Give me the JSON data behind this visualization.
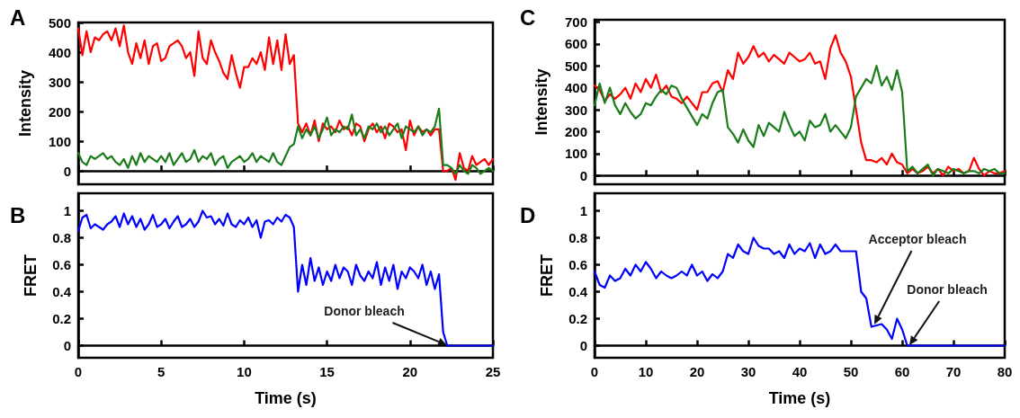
{
  "chart_data": [
    {
      "type": "line",
      "title": "A",
      "ylabel": "Intensity",
      "x": [
        0,
        0.25,
        0.5,
        0.75,
        1,
        1.25,
        1.5,
        1.75,
        2,
        2.25,
        2.5,
        2.75,
        3,
        3.25,
        3.5,
        3.75,
        4,
        4.25,
        4.5,
        4.75,
        5,
        5.25,
        5.5,
        5.75,
        6,
        6.25,
        6.5,
        6.75,
        7,
        7.25,
        7.5,
        7.75,
        8,
        8.25,
        8.5,
        8.75,
        9,
        9.25,
        9.5,
        9.75,
        10,
        10.25,
        10.5,
        10.75,
        11,
        11.25,
        11.5,
        11.75,
        12,
        12.25,
        12.5,
        12.75,
        13,
        13.25,
        13.5,
        13.75,
        14,
        14.25,
        14.5,
        14.75,
        15,
        15.25,
        15.5,
        15.75,
        16,
        16.25,
        16.5,
        16.75,
        17,
        17.25,
        17.5,
        17.75,
        18,
        18.25,
        18.5,
        18.75,
        19,
        19.25,
        19.5,
        19.75,
        20,
        20.25,
        20.5,
        20.75,
        21,
        21.25,
        21.5,
        21.75,
        22,
        22.25,
        22.5,
        22.75,
        23,
        23.25,
        23.5,
        23.75,
        24,
        24.25,
        24.5,
        24.75,
        25
      ],
      "series": [
        {
          "color": "#ff0000",
          "values": [
            480,
            390,
            470,
            400,
            450,
            440,
            460,
            470,
            440,
            480,
            420,
            490,
            400,
            360,
            430,
            380,
            440,
            360,
            420,
            430,
            370,
            380,
            420,
            430,
            440,
            420,
            380,
            400,
            320,
            470,
            380,
            360,
            440,
            400,
            370,
            330,
            310,
            390,
            330,
            280,
            350,
            350,
            380,
            360,
            400,
            340,
            450,
            360,
            440,
            340,
            460,
            360,
            390,
            160,
            130,
            160,
            120,
            170,
            100,
            160,
            140,
            150,
            130,
            170,
            140,
            150,
            120,
            160,
            150,
            100,
            140,
            160,
            130,
            150,
            110,
            160,
            150,
            130,
            140,
            70,
            170,
            120,
            150,
            130,
            140,
            120,
            140,
            140,
            0,
            0,
            10,
            -30,
            60,
            10,
            0,
            50,
            20,
            30,
            40,
            20,
            40
          ]
        },
        {
          "color": "#1a7d1a",
          "values": [
            60,
            30,
            20,
            50,
            40,
            50,
            60,
            40,
            50,
            30,
            20,
            40,
            10,
            50,
            20,
            60,
            30,
            50,
            40,
            30,
            50,
            30,
            60,
            20,
            40,
            60,
            30,
            40,
            70,
            30,
            50,
            40,
            60,
            20,
            40,
            50,
            10,
            30,
            40,
            50,
            30,
            40,
            60,
            30,
            50,
            40,
            30,
            60,
            30,
            20,
            50,
            80,
            90,
            150,
            110,
            140,
            120,
            150,
            110,
            140,
            180,
            120,
            140,
            130,
            150,
            140,
            190,
            120,
            140,
            110,
            150,
            140,
            160,
            130,
            150,
            120,
            140,
            160,
            110,
            150,
            140,
            130,
            150,
            120,
            140,
            130,
            150,
            210,
            20,
            20,
            10,
            -10,
            20,
            0,
            -10,
            20,
            10,
            -10,
            0,
            10,
            0
          ]
        }
      ],
      "xlim": [
        0,
        25
      ],
      "xticks": [
        0,
        5,
        10,
        15,
        20,
        25
      ],
      "ylim": [
        -45,
        500
      ],
      "yticks": [
        0,
        100,
        200,
        300,
        400,
        500
      ],
      "tick_labels": "y"
    },
    {
      "type": "line",
      "title": "B",
      "xlabel": "Time (s)",
      "ylabel": "FRET",
      "x": [
        0,
        0.25,
        0.5,
        0.75,
        1,
        1.25,
        1.5,
        1.75,
        2,
        2.25,
        2.5,
        2.75,
        3,
        3.25,
        3.5,
        3.75,
        4,
        4.25,
        4.5,
        4.75,
        5,
        5.25,
        5.5,
        5.75,
        6,
        6.25,
        6.5,
        6.75,
        7,
        7.25,
        7.5,
        7.75,
        8,
        8.25,
        8.5,
        8.75,
        9,
        9.25,
        9.5,
        9.75,
        10,
        10.25,
        10.5,
        10.75,
        11,
        11.25,
        11.5,
        11.75,
        12,
        12.25,
        12.5,
        12.75,
        13,
        13.25,
        13.5,
        13.75,
        14,
        14.25,
        14.5,
        14.75,
        15,
        15.25,
        15.5,
        15.75,
        16,
        16.25,
        16.5,
        16.75,
        17,
        17.25,
        17.5,
        17.75,
        18,
        18.25,
        18.5,
        18.75,
        19,
        19.25,
        19.5,
        19.75,
        20,
        20.25,
        20.5,
        20.75,
        21,
        21.25,
        21.5,
        21.75,
        22,
        22.25,
        22.5,
        22.75,
        23,
        23.25,
        23.5,
        23.75,
        24,
        24.25,
        24.5,
        24.75,
        25
      ],
      "series": [
        {
          "color": "#0000ff",
          "values": [
            0.85,
            0.95,
            0.97,
            0.87,
            0.9,
            0.88,
            0.86,
            0.9,
            0.92,
            0.96,
            0.88,
            0.98,
            0.9,
            0.96,
            0.88,
            0.94,
            0.86,
            0.9,
            0.97,
            0.88,
            0.9,
            0.94,
            0.87,
            0.92,
            0.96,
            0.88,
            0.9,
            0.94,
            0.88,
            0.92,
            1.0,
            0.95,
            0.96,
            0.9,
            0.94,
            0.89,
            0.98,
            0.9,
            0.88,
            0.93,
            0.9,
            0.95,
            0.88,
            0.93,
            0.8,
            0.92,
            0.93,
            0.9,
            0.95,
            0.92,
            0.97,
            0.95,
            0.88,
            0.4,
            0.6,
            0.45,
            0.65,
            0.48,
            0.58,
            0.45,
            0.55,
            0.48,
            0.6,
            0.5,
            0.58,
            0.55,
            0.45,
            0.6,
            0.52,
            0.48,
            0.55,
            0.5,
            0.62,
            0.45,
            0.58,
            0.48,
            0.6,
            0.42,
            0.55,
            0.5,
            0.58,
            0.55,
            0.5,
            0.6,
            0.45,
            0.55,
            0.42,
            0.53,
            0.1,
            0,
            0,
            0,
            0,
            0,
            0,
            0,
            0,
            0,
            0,
            0,
            0
          ]
        }
      ],
      "xlim": [
        0,
        25
      ],
      "xticks": [
        0,
        5,
        10,
        15,
        20,
        25
      ],
      "ylim": [
        -0.09,
        1.13
      ],
      "yticks": [
        0,
        0.2,
        0.4,
        0.6,
        0.8,
        1
      ],
      "annotations": [
        "Donor bleach"
      ]
    },
    {
      "type": "line",
      "title": "C",
      "ylabel": "Intensity",
      "x": [
        0,
        1,
        2,
        3,
        4,
        5,
        6,
        7,
        8,
        9,
        10,
        11,
        12,
        13,
        14,
        15,
        16,
        17,
        18,
        19,
        20,
        21,
        22,
        23,
        24,
        25,
        26,
        27,
        28,
        29,
        30,
        31,
        32,
        33,
        34,
        35,
        36,
        37,
        38,
        39,
        40,
        41,
        42,
        43,
        44,
        45,
        46,
        47,
        48,
        49,
        50,
        51,
        52,
        53,
        54,
        55,
        56,
        57,
        58,
        59,
        60,
        61,
        62,
        63,
        64,
        65,
        66,
        67,
        68,
        69,
        70,
        71,
        72,
        73,
        74,
        75,
        76,
        77,
        78,
        79,
        80
      ],
      "series": [
        {
          "color": "#ff0000",
          "values": [
            410,
            390,
            340,
            370,
            350,
            370,
            400,
            350,
            420,
            380,
            440,
            400,
            460,
            380,
            410,
            360,
            350,
            330,
            360,
            330,
            300,
            380,
            380,
            420,
            430,
            380,
            480,
            440,
            560,
            510,
            540,
            590,
            540,
            560,
            520,
            550,
            530,
            510,
            560,
            540,
            520,
            530,
            560,
            510,
            520,
            440,
            580,
            640,
            560,
            520,
            450,
            300,
            150,
            70,
            70,
            60,
            80,
            50,
            100,
            60,
            50,
            10,
            30,
            10,
            20,
            40,
            10,
            30,
            0,
            40,
            20,
            30,
            10,
            20,
            80,
            30,
            0,
            20,
            10,
            10,
            20
          ]
        },
        {
          "color": "#1a7d1a",
          "values": [
            320,
            420,
            330,
            400,
            320,
            280,
            330,
            290,
            260,
            280,
            330,
            320,
            360,
            390,
            370,
            410,
            400,
            350,
            310,
            270,
            230,
            280,
            260,
            330,
            380,
            390,
            220,
            190,
            150,
            210,
            160,
            130,
            230,
            180,
            240,
            220,
            200,
            290,
            230,
            180,
            200,
            160,
            250,
            220,
            230,
            280,
            200,
            230,
            200,
            170,
            220,
            360,
            400,
            440,
            420,
            500,
            410,
            450,
            390,
            480,
            380,
            20,
            40,
            10,
            30,
            50,
            0,
            30,
            20,
            10,
            30,
            20,
            10,
            20,
            20,
            10,
            30,
            20,
            30,
            10,
            10
          ]
        }
      ],
      "xlim": [
        0,
        80
      ],
      "xticks": [
        0,
        10,
        20,
        30,
        40,
        50,
        60,
        70,
        80
      ],
      "ylim": [
        -40,
        710
      ],
      "yticks": [
        0,
        100,
        200,
        300,
        400,
        500,
        600,
        700
      ],
      "tick_labels": "y"
    },
    {
      "type": "line",
      "title": "D",
      "xlabel": "Time (s)",
      "ylabel": "FRET",
      "x": [
        0,
        1,
        2,
        3,
        4,
        5,
        6,
        7,
        8,
        9,
        10,
        11,
        12,
        13,
        14,
        15,
        16,
        17,
        18,
        19,
        20,
        21,
        22,
        23,
        24,
        25,
        26,
        27,
        28,
        29,
        30,
        31,
        32,
        33,
        34,
        35,
        36,
        37,
        38,
        39,
        40,
        41,
        42,
        43,
        44,
        45,
        46,
        47,
        48,
        49,
        50,
        51,
        52,
        53,
        54,
        55,
        56,
        57,
        58,
        59,
        60,
        61,
        62,
        63,
        64,
        65,
        66,
        67,
        68,
        69,
        70,
        71,
        72,
        73,
        74,
        75,
        76,
        77,
        78,
        79,
        80
      ],
      "series": [
        {
          "color": "#0000ff",
          "values": [
            0.55,
            0.45,
            0.43,
            0.52,
            0.48,
            0.5,
            0.57,
            0.52,
            0.6,
            0.55,
            0.62,
            0.57,
            0.5,
            0.55,
            0.52,
            0.5,
            0.52,
            0.55,
            0.52,
            0.6,
            0.52,
            0.55,
            0.48,
            0.53,
            0.5,
            0.55,
            0.68,
            0.65,
            0.75,
            0.7,
            0.68,
            0.8,
            0.74,
            0.72,
            0.72,
            0.68,
            0.7,
            0.65,
            0.75,
            0.68,
            0.72,
            0.7,
            0.76,
            0.65,
            0.75,
            0.68,
            0.7,
            0.75,
            0.7,
            0.7,
            0.7,
            0.7,
            0.4,
            0.35,
            0.14,
            0.15,
            0.16,
            0.12,
            0.05,
            0.2,
            0.12,
            0,
            0,
            0,
            0,
            0,
            0,
            0,
            0,
            0,
            0,
            0,
            0,
            0,
            0,
            0,
            0,
            0,
            0,
            0,
            0
          ]
        }
      ],
      "xlim": [
        0,
        80
      ],
      "xticks": [
        0,
        10,
        20,
        30,
        40,
        50,
        60,
        70,
        80
      ],
      "ylim": [
        -0.09,
        1.13
      ],
      "yticks": [
        0,
        0.2,
        0.4,
        0.6,
        0.8,
        1
      ],
      "annotations": [
        "Acceptor bleach",
        "Donor bleach"
      ]
    }
  ]
}
